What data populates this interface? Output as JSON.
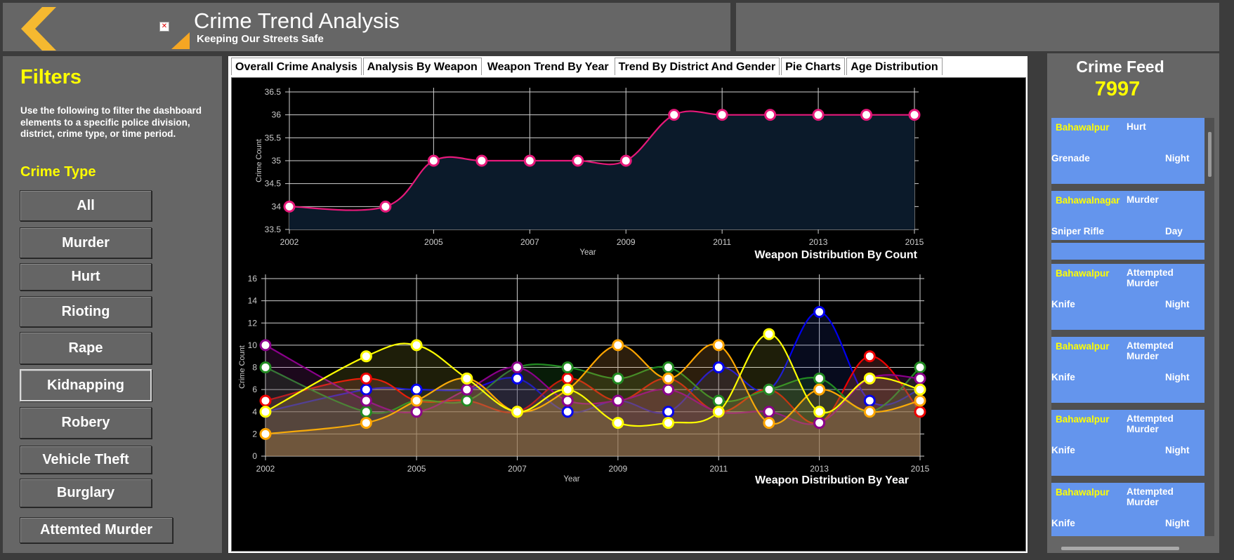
{
  "header": {
    "title": "Crime Trend Analysis",
    "subtitle": "Keeping Our Streets Safe",
    "broken_image_glyph": "✕",
    "colors": {
      "accent": "#f5a623",
      "bar_bg": "#666666"
    }
  },
  "sidebar": {
    "title": "Filters",
    "description": "Use the following to filter the dashboard elements to a specific police division, district, crime type, or time period.",
    "crime_type_title": "Crime Type",
    "buttons": [
      {
        "label": "All"
      },
      {
        "label": "Murder"
      },
      {
        "label": "Hurt"
      },
      {
        "label": "Rioting"
      },
      {
        "label": "Rape"
      },
      {
        "label": "Kidnapping",
        "active": true
      },
      {
        "label": "Robery"
      },
      {
        "label": "Vehicle Theft"
      },
      {
        "label": "Burglary"
      },
      {
        "label": "Attemted Murder"
      }
    ]
  },
  "tabs": [
    {
      "label": "Overall Crime Analysis"
    },
    {
      "label": "Analysis By Weapon"
    },
    {
      "label": "Weapon Trend By Year",
      "active": true
    },
    {
      "label": "Trend By District And Gender"
    },
    {
      "label": "Pie Charts"
    },
    {
      "label": "Age Distribution"
    }
  ],
  "feed": {
    "title": "Crime Feed",
    "count": "7997",
    "items": [
      {
        "district": "Bahawalpur",
        "crime": "Hurt",
        "weapon": "Grenade",
        "time": "Night"
      },
      {
        "district": "Bahawalnagar",
        "crime": "Murder",
        "weapon": "Sniper Rifle",
        "time": "Day"
      },
      {
        "district": "Bahawalpur",
        "crime": "Attempted Murder",
        "weapon": "Knife",
        "time": "Night"
      },
      {
        "district": "Bahawalpur",
        "crime": "Attempted Murder",
        "weapon": "Knife",
        "time": "Night"
      },
      {
        "district": "Bahawalpur",
        "crime": "Attempted Murder",
        "weapon": "Knife",
        "time": "Night"
      },
      {
        "district": "Bahawalpur",
        "crime": "Attempted Murder",
        "weapon": "Knife",
        "time": "Night"
      }
    ]
  },
  "chart_data": [
    {
      "type": "area",
      "title": "Weapon Distribution By Count",
      "xlabel": "Year",
      "ylabel": "Crime Count",
      "xlim": [
        2002,
        2015
      ],
      "ylim": [
        33.5,
        36.5
      ],
      "xticks": [
        2002,
        2005,
        2007,
        2009,
        2011,
        2013,
        2015
      ],
      "yticks": [
        33.5,
        34,
        34.5,
        35,
        35.5,
        36,
        36.5
      ],
      "grid": true,
      "series": [
        {
          "color": "#e6197a",
          "fill": "#0b1a2a",
          "x": [
            2002,
            2004,
            2005,
            2006,
            2007,
            2008,
            2009,
            2010,
            2011,
            2012,
            2013,
            2014,
            2015
          ],
          "values": [
            34,
            34,
            35,
            35,
            35,
            35,
            35,
            36,
            36,
            36,
            36,
            36,
            36
          ]
        }
      ]
    },
    {
      "type": "area",
      "title": "Weapon Distribution By Year",
      "xlabel": "Year",
      "ylabel": "Crime Count",
      "xlim": [
        2002,
        2015
      ],
      "ylim": [
        0,
        16
      ],
      "xticks": [
        2002,
        2005,
        2007,
        2009,
        2011,
        2013,
        2015
      ],
      "yticks": [
        0,
        2,
        4,
        6,
        8,
        10,
        12,
        14,
        16
      ],
      "grid": true,
      "x": [
        2002,
        2004,
        2005,
        2006,
        2007,
        2008,
        2009,
        2010,
        2011,
        2012,
        2013,
        2014,
        2015
      ],
      "series": [
        {
          "color": "#0000ee",
          "values": [
            4,
            6,
            6,
            6,
            7,
            4,
            5,
            4,
            8,
            6,
            13,
            5,
            6
          ]
        },
        {
          "color": "#ee0000",
          "values": [
            5,
            7,
            5,
            5,
            4,
            7,
            5,
            7,
            4,
            6,
            3,
            9,
            4
          ]
        },
        {
          "color": "#228b22",
          "values": [
            8,
            4,
            5,
            5,
            8,
            8,
            7,
            8,
            5,
            6,
            7,
            4,
            8
          ]
        },
        {
          "color": "#8b008b",
          "values": [
            10,
            5,
            4,
            6,
            8,
            5,
            5,
            6,
            4,
            4,
            3,
            7,
            7
          ]
        },
        {
          "color": "#ffa500",
          "values": [
            2,
            3,
            5,
            7,
            4,
            6,
            10,
            7,
            10,
            3,
            6,
            4,
            5
          ]
        },
        {
          "color": "#ffff00",
          "values": [
            4,
            9,
            10,
            7,
            4,
            6,
            3,
            3,
            4,
            11,
            4,
            7,
            6
          ]
        }
      ]
    }
  ]
}
